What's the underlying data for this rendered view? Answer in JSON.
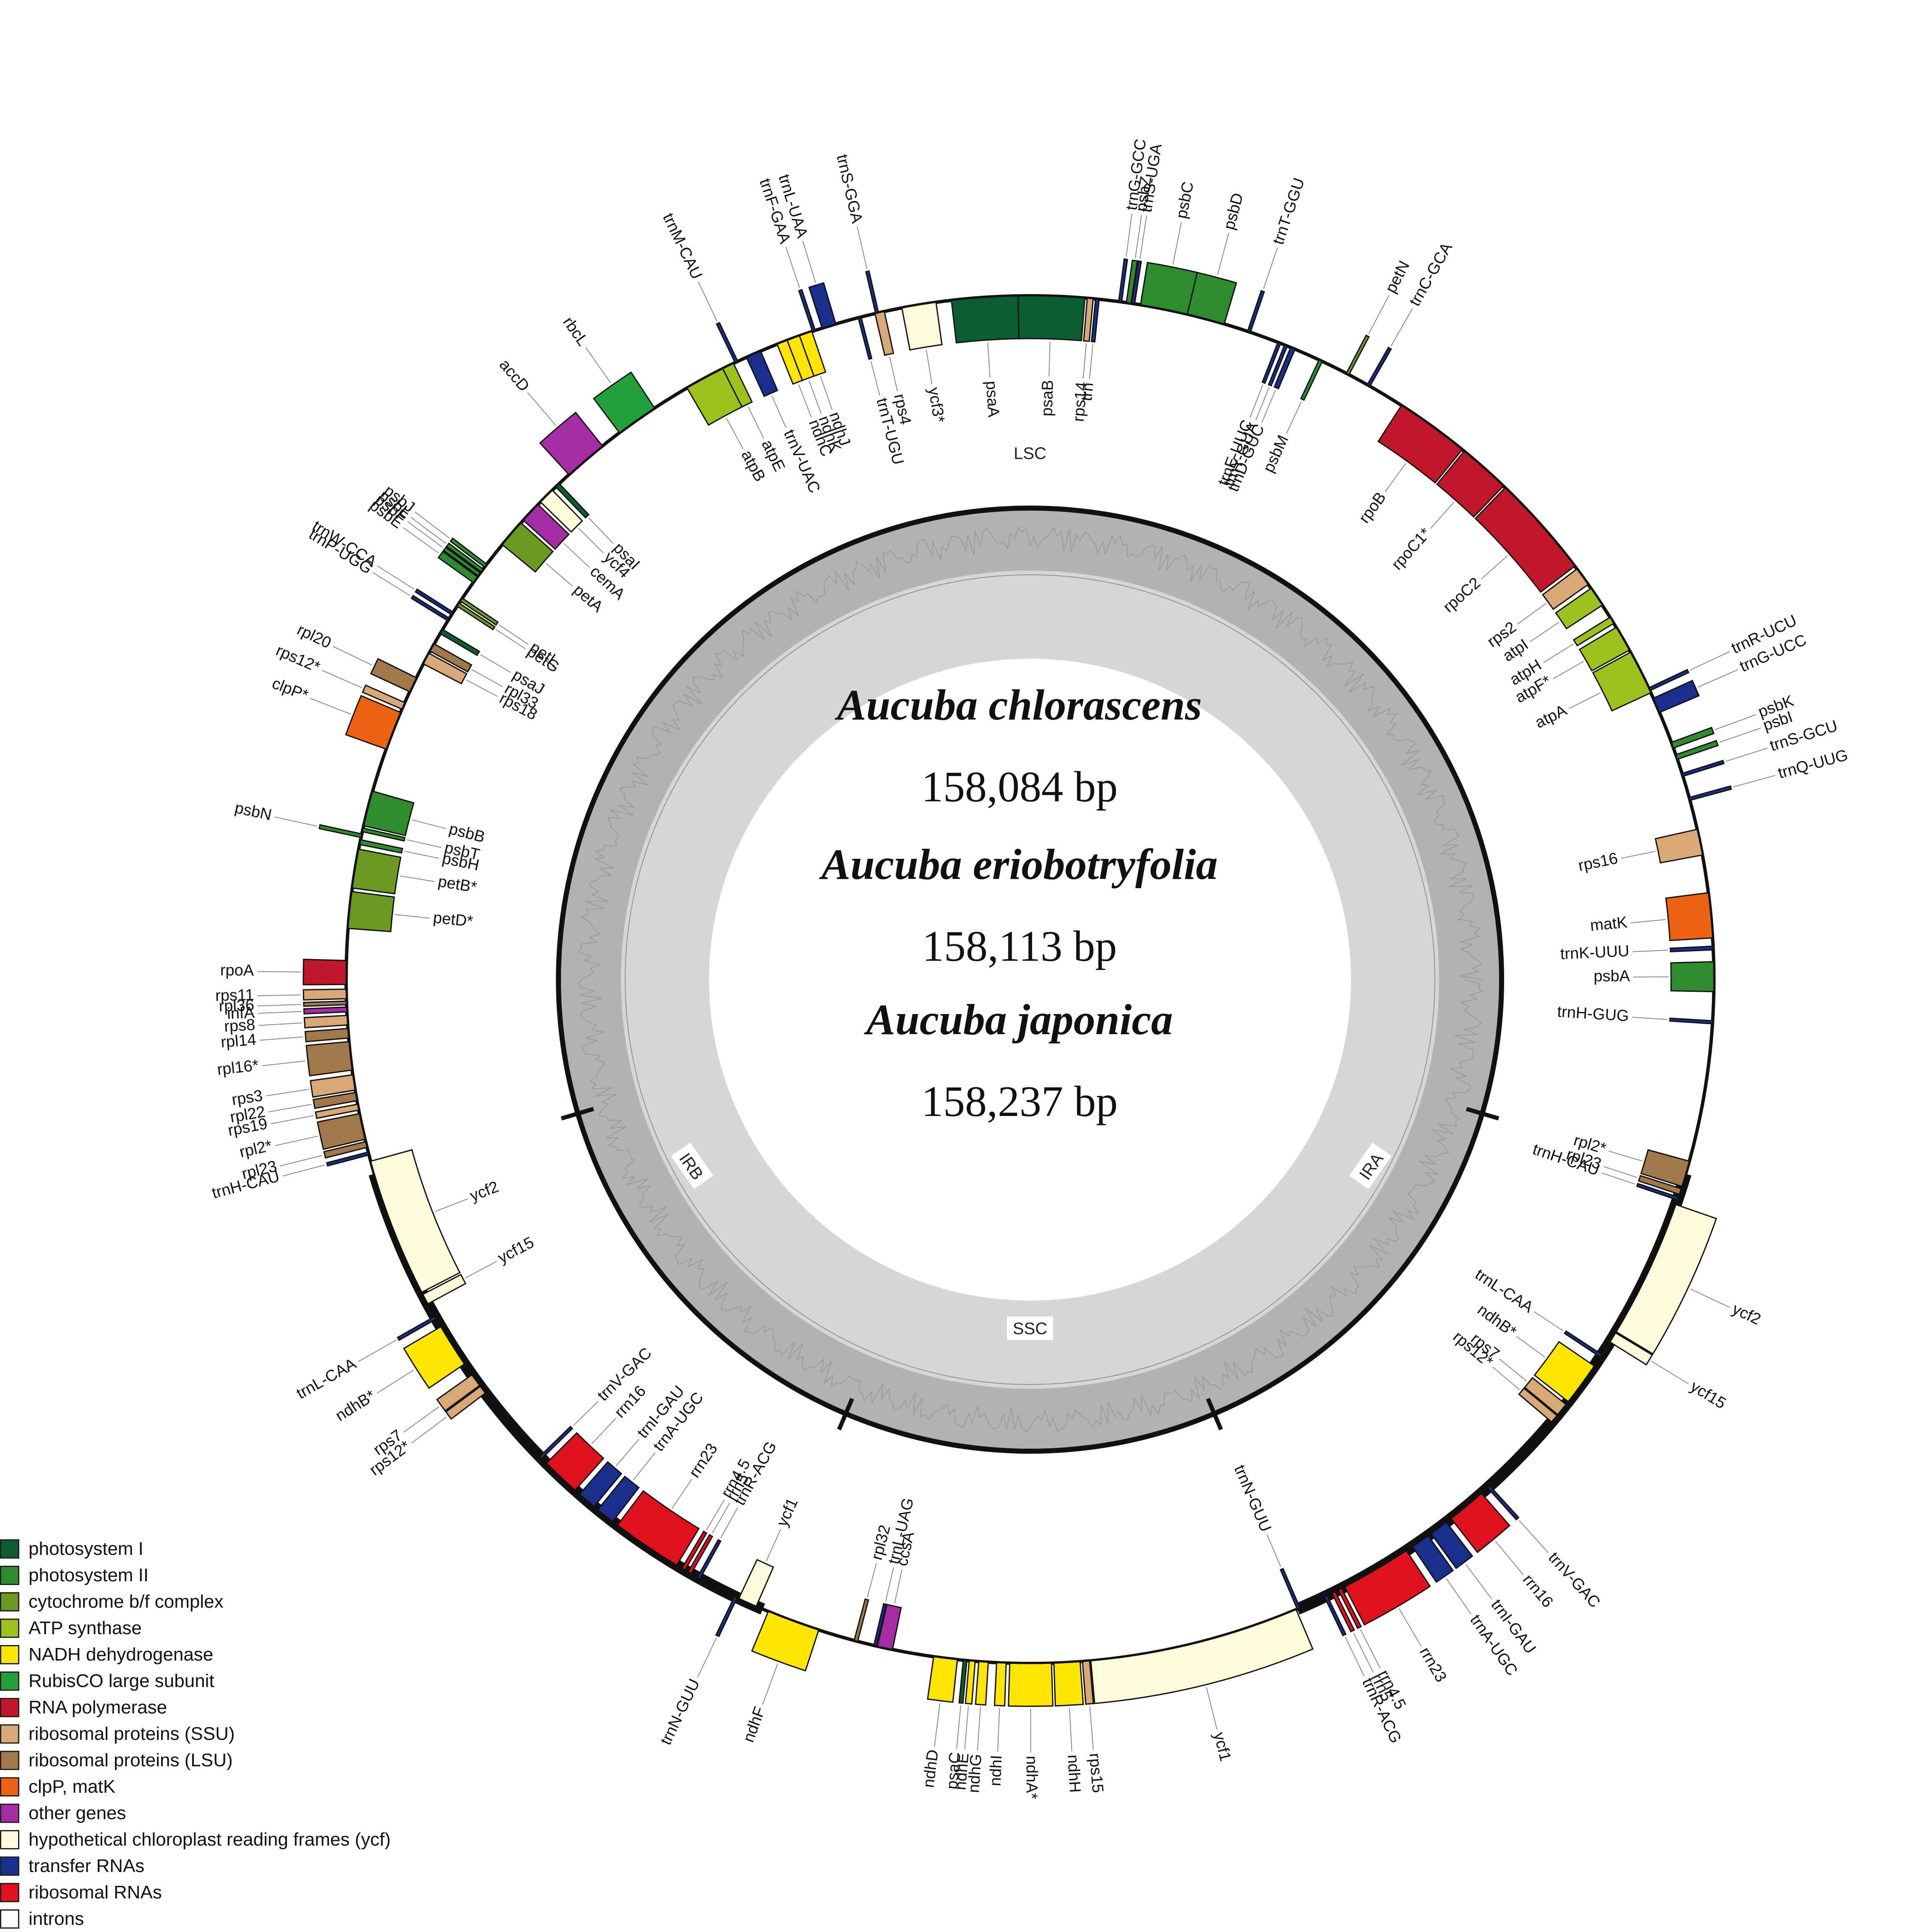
{
  "title": {
    "species": [
      {
        "name": "Aucuba chlorascens",
        "length": "158,084 bp"
      },
      {
        "name": "Aucuba eriobotryfolia",
        "length": "158,113 bp"
      },
      {
        "name": "Aucuba japonica",
        "length": "158,237 bp"
      }
    ]
  },
  "regions": {
    "lsc": "LSC",
    "ssc": "SSC",
    "ira": "IRA",
    "irb": "IRB"
  },
  "legend": [
    {
      "key": "psI",
      "label": "photosystem I",
      "color": "#0b5e2f"
    },
    {
      "key": "psII",
      "label": "photosystem II",
      "color": "#2e8b2e"
    },
    {
      "key": "cyt",
      "label": "cytochrome b/f complex",
      "color": "#6a9a1f"
    },
    {
      "key": "atp",
      "label": "ATP synthase",
      "color": "#9dc21c"
    },
    {
      "key": "ndh",
      "label": "NADH dehydrogenase",
      "color": "#ffe600"
    },
    {
      "key": "rbc",
      "label": "RubisCO large subunit",
      "color": "#22a03a"
    },
    {
      "key": "rpo",
      "label": "RNA polymerase",
      "color": "#c0172a"
    },
    {
      "key": "ssu",
      "label": "ribosomal proteins (SSU)",
      "color": "#d9a877"
    },
    {
      "key": "lsu",
      "label": "ribosomal proteins (LSU)",
      "color": "#a0784a"
    },
    {
      "key": "clp",
      "label": "clpP, matK",
      "color": "#ec6413"
    },
    {
      "key": "oth",
      "label": "other genes",
      "color": "#a62ca6"
    },
    {
      "key": "ycf",
      "label": "hypothetical chloroplast reading frames (ycf)",
      "color": "#fffad9"
    },
    {
      "key": "trn",
      "label": "transfer RNAs",
      "color": "#1a2e8c"
    },
    {
      "key": "rrn",
      "label": "ribosomal RNAs",
      "color": "#e0101c"
    },
    {
      "key": "intron",
      "label": "introns",
      "color": "#ffffff"
    }
  ],
  "genes": [
    {
      "name": "psbA",
      "t": "psII",
      "s": 359,
      "w": 2.5,
      "out": false
    },
    {
      "name": "trnH-GUG",
      "t": "trn",
      "s": 356.3,
      "w": 0.25,
      "out": false
    },
    {
      "name": "trnK-UUU",
      "t": "trn",
      "s": 2.5,
      "w": 0.3,
      "out": false
    },
    {
      "name": "matK",
      "t": "clp",
      "s": 3.5,
      "w": 3.8,
      "out": false
    },
    {
      "name": "rps16",
      "t": "ssu",
      "s": 10.5,
      "w": 2.2,
      "out": false
    },
    {
      "name": "trnQ-UUG",
      "t": "trn",
      "s": 15.2,
      "w": 0.25,
      "out": true
    },
    {
      "name": "trnS-GCU",
      "t": "trn",
      "s": 17.3,
      "w": 0.25,
      "out": true
    },
    {
      "name": "psbI",
      "t": "psII",
      "s": 18.8,
      "w": 0.4,
      "out": true
    },
    {
      "name": "psbK",
      "t": "psII",
      "s": 19.8,
      "w": 0.5,
      "out": true
    },
    {
      "name": "trnG-UCC",
      "t": "trn",
      "s": 23,
      "w": 1.3,
      "out": true
    },
    {
      "name": "trnR-UCU",
      "t": "trn",
      "s": 25,
      "w": 0.25,
      "out": true
    },
    {
      "name": "atpA",
      "t": "atp",
      "s": 24.8,
      "w": 3.8,
      "out": false
    },
    {
      "name": "atpF*",
      "t": "atp",
      "s": 28.8,
      "w": 2.2,
      "out": false
    },
    {
      "name": "atpH",
      "t": "atp",
      "s": 31.4,
      "w": 0.6,
      "out": false
    },
    {
      "name": "atpI",
      "t": "atp",
      "s": 33.2,
      "w": 1.7,
      "out": false
    },
    {
      "name": "rps2",
      "t": "ssu",
      "s": 35.3,
      "w": 1.6,
      "out": false
    },
    {
      "name": "rpoC2",
      "t": "rpo",
      "s": 37.2,
      "w": 8.8,
      "out": false
    },
    {
      "name": "rpoC1*",
      "t": "rpo",
      "s": 46.2,
      "w": 4.4,
      "out": false
    },
    {
      "name": "rpoB",
      "t": "rpo",
      "s": 50.8,
      "w": 6.3,
      "out": false
    },
    {
      "name": "psbM",
      "t": "psII",
      "s": 64.7,
      "w": 0.3,
      "out": false
    },
    {
      "name": "trnD-GUC",
      "t": "trn",
      "s": 67.2,
      "w": 0.4,
      "out": false
    },
    {
      "name": "trnY-GUA",
      "t": "trn",
      "s": 67.9,
      "w": 0.25,
      "out": false
    },
    {
      "name": "trnE-UUC",
      "t": "trn",
      "s": 68.5,
      "w": 0.25,
      "out": false
    },
    {
      "name": "trnC-GCA",
      "t": "trn",
      "s": 60.2,
      "w": 0.25,
      "out": true
    },
    {
      "name": "petN",
      "t": "cyt",
      "s": 62.2,
      "w": 0.25,
      "out": true
    },
    {
      "name": "trnT-GGU",
      "t": "trn",
      "s": 71.2,
      "w": 0.25,
      "out": true
    },
    {
      "name": "psbD",
      "t": "psII",
      "s": 73.5,
      "w": 3.2,
      "out": true
    },
    {
      "name": "psbC",
      "t": "psII",
      "s": 76.7,
      "w": 4.0,
      "out": true
    },
    {
      "name": "trnS-UGA",
      "t": "trn",
      "s": 81.2,
      "w": 0.25,
      "out": true
    },
    {
      "name": "psbZ",
      "t": "psII",
      "s": 81.5,
      "w": 0.4,
      "out": true
    },
    {
      "name": "trnG-GCC",
      "t": "trn",
      "s": 82.3,
      "w": 0.25,
      "out": true
    },
    {
      "name": "trn",
      "t": "trn",
      "s": 84.2,
      "w": 0.3,
      "out": false
    },
    {
      "name": "rps14",
      "t": "ssu",
      "s": 84.7,
      "w": 0.5,
      "out": false
    },
    {
      "name": "psaB",
      "t": "psI",
      "s": 85.4,
      "w": 5.6,
      "out": false
    },
    {
      "name": "psaA",
      "t": "psI",
      "s": 91.0,
      "w": 5.6,
      "out": false
    },
    {
      "name": "ycf3*",
      "t": "ycf",
      "s": 97.9,
      "w": 2.9,
      "out": false
    },
    {
      "name": "rps4",
      "t": "ssu",
      "s": 102.3,
      "w": 0.8,
      "out": false
    },
    {
      "name": "trnT-UGU",
      "t": "trn",
      "s": 104.3,
      "w": 0.25,
      "out": false
    },
    {
      "name": "trnS-GGA",
      "t": "trn",
      "s": 102.8,
      "w": 0.25,
      "out": true
    },
    {
      "name": "trnL-UAA",
      "t": "trn",
      "s": 106.5,
      "w": 1.2,
      "out": true
    },
    {
      "name": "trnF-GAA",
      "t": "trn",
      "s": 108.3,
      "w": 0.25,
      "out": true
    },
    {
      "name": "ndhJ",
      "t": "ndh",
      "s": 108.6,
      "w": 1.1,
      "out": false
    },
    {
      "name": "ndhK",
      "t": "ndh",
      "s": 109.7,
      "w": 1.1,
      "out": false
    },
    {
      "name": "ndhC",
      "t": "ndh",
      "s": 110.8,
      "w": 0.9,
      "out": false
    },
    {
      "name": "trnV-UAC",
      "t": "trn",
      "s": 113.2,
      "w": 1.3,
      "out": false
    },
    {
      "name": "trnM-CAU",
      "t": "trn",
      "s": 115.3,
      "w": 0.25,
      "out": true
    },
    {
      "name": "atpE",
      "t": "atp",
      "s": 115.7,
      "w": 1.0,
      "out": false
    },
    {
      "name": "atpB",
      "t": "atp",
      "s": 116.7,
      "w": 3.4,
      "out": false
    },
    {
      "name": "rbcL",
      "t": "rbc",
      "s": 123.3,
      "w": 3.6,
      "out": true
    },
    {
      "name": "accD",
      "t": "oth",
      "s": 128.7,
      "w": 3.7,
      "out": true
    },
    {
      "name": "psaI",
      "t": "psI",
      "s": 133.5,
      "w": 0.4,
      "out": false
    },
    {
      "name": "ycf4",
      "t": "ycf",
      "s": 134.3,
      "w": 1.4,
      "out": false
    },
    {
      "name": "cemA",
      "t": "oth",
      "s": 136.0,
      "w": 1.8,
      "out": false
    },
    {
      "name": "petA",
      "t": "cyt",
      "s": 138.1,
      "w": 2.4,
      "out": false
    },
    {
      "name": "psbJ",
      "t": "psII",
      "s": 142.6,
      "w": 0.3,
      "out": true
    },
    {
      "name": "psbL",
      "t": "psII",
      "s": 143.1,
      "w": 0.3,
      "out": true
    },
    {
      "name": "psbF",
      "t": "psII",
      "s": 143.5,
      "w": 0.3,
      "out": true
    },
    {
      "name": "psbE",
      "t": "psII",
      "s": 143.9,
      "w": 0.6,
      "out": true
    },
    {
      "name": "petL",
      "t": "cyt",
      "s": 146.1,
      "w": 0.3,
      "out": false
    },
    {
      "name": "petG",
      "t": "cyt",
      "s": 146.6,
      "w": 0.3,
      "out": false
    },
    {
      "name": "trnW-CCA",
      "t": "trn",
      "s": 147.5,
      "w": 0.25,
      "out": true
    },
    {
      "name": "trnP-UGG",
      "t": "trn",
      "s": 148.1,
      "w": 0.25,
      "out": true
    },
    {
      "name": "psaJ",
      "t": "psI",
      "s": 149.2,
      "w": 0.4,
      "out": false
    },
    {
      "name": "rpl33",
      "t": "lsu",
      "s": 150.6,
      "w": 0.7,
      "out": false
    },
    {
      "name": "rps18",
      "t": "ssu",
      "s": 151.5,
      "w": 1.0,
      "out": false
    },
    {
      "name": "rpl20",
      "t": "lsu",
      "s": 153.8,
      "w": 1.3,
      "out": true
    },
    {
      "name": "rps12*",
      "t": "ssu",
      "s": 156.1,
      "w": 0.6,
      "out": true
    },
    {
      "name": "clpP*",
      "t": "clp",
      "s": 157.0,
      "w": 3.3,
      "out": true
    },
    {
      "name": "psbB",
      "t": "psII",
      "s": 164.0,
      "w": 3.0,
      "out": false
    },
    {
      "name": "psbT",
      "t": "psII",
      "s": 167.2,
      "w": 0.3,
      "out": false
    },
    {
      "name": "psbN",
      "t": "psII",
      "s": 167.7,
      "w": 0.3,
      "out": true
    },
    {
      "name": "psbH",
      "t": "psII",
      "s": 168.2,
      "w": 0.4,
      "out": false
    },
    {
      "name": "petB*",
      "t": "cyt",
      "s": 169.0,
      "w": 3.3,
      "out": false
    },
    {
      "name": "petD*",
      "t": "cyt",
      "s": 172.6,
      "w": 3.1,
      "out": false
    },
    {
      "name": "rpoA",
      "t": "rpo",
      "s": 178.4,
      "w": 2.0,
      "out": true
    },
    {
      "name": "rps11",
      "t": "ssu",
      "s": 180.8,
      "w": 0.8,
      "out": true
    },
    {
      "name": "rpl36",
      "t": "lsu",
      "s": 181.8,
      "w": 0.3,
      "out": true
    },
    {
      "name": "infA",
      "t": "oth",
      "s": 182.3,
      "w": 0.4,
      "out": true
    },
    {
      "name": "rps8",
      "t": "ssu",
      "s": 183.0,
      "w": 0.8,
      "out": true
    },
    {
      "name": "rpl14",
      "t": "lsu",
      "s": 184.1,
      "w": 0.8,
      "out": true
    },
    {
      "name": "rpl16*",
      "t": "lsu",
      "s": 185.2,
      "w": 2.4,
      "out": true
    },
    {
      "name": "rps3",
      "t": "ssu",
      "s": 188.0,
      "w": 1.3,
      "out": true
    },
    {
      "name": "rpl22",
      "t": "lsu",
      "s": 189.5,
      "w": 0.7,
      "out": true
    },
    {
      "name": "rps19",
      "t": "ssu",
      "s": 190.5,
      "w": 0.5,
      "out": true
    },
    {
      "name": "rpl2*",
      "t": "lsu",
      "s": 191.3,
      "w": 2.2,
      "out": true
    },
    {
      "name": "rpl23",
      "t": "lsu",
      "s": 193.7,
      "w": 0.5,
      "out": true
    },
    {
      "name": "trnH-CAU",
      "t": "trn",
      "s": 194.6,
      "w": 0.25,
      "out": true
    },
    {
      "name": "ycf2",
      "t": "ycf",
      "s": 195.4,
      "w": 11.8,
      "out": false
    },
    {
      "name": "ycf15",
      "t": "ycf",
      "s": 207.4,
      "w": 0.9,
      "out": false
    },
    {
      "name": "trnL-CAA",
      "t": "trn",
      "s": 209.5,
      "w": 0.25,
      "out": true
    },
    {
      "name": "ndhB*",
      "t": "ndh",
      "s": 210.5,
      "w": 3.7,
      "out": true
    },
    {
      "name": "rps7",
      "t": "ssu",
      "s": 215.3,
      "w": 1.1,
      "out": true
    },
    {
      "name": "rps12*",
      "t": "ssu",
      "s": 216.5,
      "w": 0.7,
      "out": true
    },
    {
      "name": "trnV-GAC",
      "t": "trn",
      "s": 224.2,
      "w": 0.25,
      "out": false
    },
    {
      "name": "rrn16",
      "t": "rrn",
      "s": 225.0,
      "w": 3.3,
      "out": false
    },
    {
      "name": "trnI-GAU",
      "t": "trn",
      "s": 228.8,
      "w": 1.6,
      "out": false
    },
    {
      "name": "trnA-UGC",
      "t": "trn",
      "s": 230.8,
      "w": 1.6,
      "out": false
    },
    {
      "name": "rrn23",
      "t": "rrn",
      "s": 232.9,
      "w": 6.0,
      "out": false
    },
    {
      "name": "rrn4.5",
      "t": "rrn",
      "s": 239.4,
      "w": 0.3,
      "out": false
    },
    {
      "name": "rrn5",
      "t": "rrn",
      "s": 240.0,
      "w": 0.3,
      "out": false
    },
    {
      "name": "trnR-ACG",
      "t": "trn",
      "s": 240.9,
      "w": 0.25,
      "out": false
    },
    {
      "name": "trnN-GUU",
      "t": "trn",
      "s": 244.4,
      "w": 0.25,
      "out": true
    },
    {
      "name": "ycf1",
      "t": "ycf",
      "s": 244.8,
      "w": 1.6,
      "out": false
    },
    {
      "name": "ndhF",
      "t": "ndh",
      "s": 247.5,
      "w": 4.5,
      "out": true
    },
    {
      "name": "rpl32",
      "t": "lsu",
      "s": 255.1,
      "w": 0.3,
      "out": false
    },
    {
      "name": "trnL-UAG",
      "t": "trn",
      "s": 256.8,
      "w": 0.25,
      "out": false
    },
    {
      "name": "ccsA",
      "t": "oth",
      "s": 257.1,
      "w": 1.3,
      "out": false
    },
    {
      "name": "ndhD",
      "t": "ndh",
      "s": 261.9,
      "w": 2.0,
      "out": true
    },
    {
      "name": "psaC",
      "t": "psI",
      "s": 264.4,
      "w": 0.3,
      "out": true
    },
    {
      "name": "ndhE",
      "t": "ndh",
      "s": 264.9,
      "w": 0.5,
      "out": true
    },
    {
      "name": "ndhG",
      "t": "ndh",
      "s": 265.7,
      "w": 0.8,
      "out": true
    },
    {
      "name": "ndhI",
      "t": "ndh",
      "s": 267.2,
      "w": 0.8,
      "out": true
    },
    {
      "name": "ndhA*",
      "t": "ndh",
      "s": 268.3,
      "w": 3.5,
      "out": true
    },
    {
      "name": "ndhH",
      "t": "ndh",
      "s": 272.0,
      "w": 2.2,
      "out": true
    },
    {
      "name": "rps15",
      "t": "ssu",
      "s": 274.4,
      "w": 0.6,
      "out": true
    },
    {
      "name": "ycf1",
      "t": "ycf",
      "s": 275.1,
      "w": 17.8,
      "out": true
    },
    {
      "name": "trnN-GUU",
      "t": "trn",
      "s": 293.0,
      "w": 0.25,
      "out": false
    },
    {
      "name": "trnR-ACG",
      "t": "trn",
      "s": 295.5,
      "w": 0.25,
      "out": true
    },
    {
      "name": "rrn5",
      "t": "rrn",
      "s": 296.2,
      "w": 0.3,
      "out": true
    },
    {
      "name": "rrn4.5",
      "t": "rrn",
      "s": 296.8,
      "w": 0.3,
      "out": true
    },
    {
      "name": "rrn23",
      "t": "rrn",
      "s": 297.4,
      "w": 6.0,
      "out": true
    },
    {
      "name": "trnA-UGC",
      "t": "trn",
      "s": 304.0,
      "w": 1.6,
      "out": true
    },
    {
      "name": "trnI-GAU",
      "t": "trn",
      "s": 305.9,
      "w": 1.6,
      "out": true
    },
    {
      "name": "rrn16",
      "t": "rrn",
      "s": 308.0,
      "w": 3.3,
      "out": true
    },
    {
      "name": "trnV-GAC",
      "t": "trn",
      "s": 312.0,
      "w": 0.25,
      "out": true
    },
    {
      "name": "rps12*",
      "t": "ssu",
      "s": 319.7,
      "w": 0.7,
      "out": false
    },
    {
      "name": "rps7",
      "t": "ssu",
      "s": 320.5,
      "w": 1.1,
      "out": false
    },
    {
      "name": "ndhB*",
      "t": "ndh",
      "s": 321.9,
      "w": 3.7,
      "out": false
    },
    {
      "name": "trnL-CAA",
      "t": "trn",
      "s": 326.5,
      "w": 0.25,
      "out": false
    },
    {
      "name": "ycf15",
      "t": "ycf",
      "s": 328.0,
      "w": 0.9,
      "out": true
    },
    {
      "name": "ycf2",
      "t": "ycf",
      "s": 329.0,
      "w": 11.8,
      "out": true
    },
    {
      "name": "trnH-CAU",
      "t": "trn",
      "s": 341.2,
      "w": 0.25,
      "out": false
    },
    {
      "name": "rpl23",
      "t": "lsu",
      "s": 341.7,
      "w": 0.5,
      "out": false
    },
    {
      "name": "rpl2*",
      "t": "lsu",
      "s": 342.4,
      "w": 2.2,
      "out": false
    }
  ],
  "boundaries": {
    "ira_start": 323.5,
    "ira_end": 196.5,
    "irb_start": 213.5,
    "irb_end": 247.0
  }
}
